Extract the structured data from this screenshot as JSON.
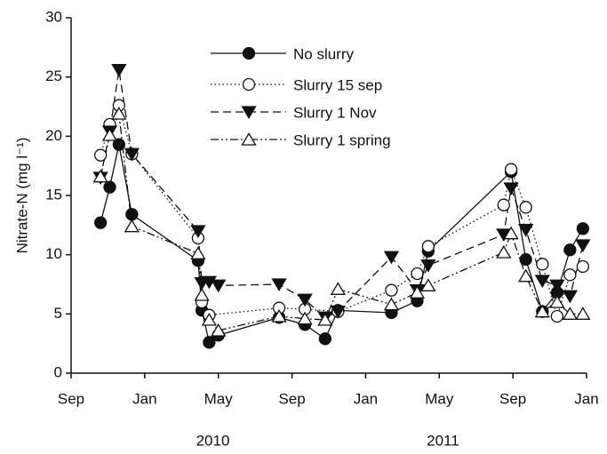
{
  "chart_data": {
    "type": "line",
    "ylabel": "Nitrate-N (mg l⁻¹)",
    "ylim": [
      0,
      30
    ],
    "yticks": [
      0,
      5,
      10,
      15,
      20,
      25,
      30
    ],
    "xlim": [
      0,
      28
    ],
    "xticks": [
      {
        "value": 0,
        "label": "Sep"
      },
      {
        "value": 4,
        "label": "Jan"
      },
      {
        "value": 8,
        "label": "May"
      },
      {
        "value": 12,
        "label": "Sep"
      },
      {
        "value": 16,
        "label": "Jan"
      },
      {
        "value": 20,
        "label": "May"
      },
      {
        "value": 24,
        "label": "Sep"
      },
      {
        "value": 28,
        "label": "Jan"
      }
    ],
    "year_labels": [
      {
        "value": 7.7,
        "label": "2010"
      },
      {
        "value": 20.2,
        "label": "2011"
      }
    ],
    "legend": "upper center",
    "series": [
      {
        "name": "No slurry",
        "color": "#111111",
        "marker": "filled-circle",
        "dash": "solid",
        "x": [
          1.6,
          2.1,
          2.6,
          3.3,
          6.9,
          7.1,
          7.5,
          8.0,
          11.3,
          12.7,
          13.8,
          14.5,
          17.4,
          18.8,
          19.4,
          23.9,
          24.7,
          25.6,
          26.4,
          27.1,
          27.8
        ],
        "values": [
          12.7,
          15.7,
          19.3,
          13.4,
          9.5,
          5.3,
          2.6,
          3.2,
          4.7,
          4.1,
          2.9,
          5.3,
          5.1,
          6.1,
          10.3,
          17.0,
          9.6,
          5.2,
          6.8,
          10.4,
          12.2
        ]
      },
      {
        "name": "Slurry 15 sep",
        "color": "#111111",
        "marker": "open-circle",
        "dash": "dotted",
        "x": [
          1.6,
          2.1,
          2.6,
          3.3,
          6.9,
          7.1,
          7.5,
          11.3,
          12.7,
          14.5,
          17.4,
          18.8,
          19.4,
          23.5,
          23.9,
          24.7,
          25.6,
          26.4,
          27.1,
          27.8
        ],
        "values": [
          18.4,
          21.0,
          22.6,
          18.5,
          11.4,
          6.0,
          4.9,
          5.5,
          5.4,
          5.2,
          7.0,
          8.4,
          10.7,
          14.2,
          17.2,
          14.0,
          9.2,
          4.8,
          8.3,
          9.0
        ]
      },
      {
        "name": "Slurry 1 Nov",
        "color": "#111111",
        "marker": "filled-triangle-down",
        "dash": "dashed",
        "x": [
          1.6,
          2.1,
          2.6,
          3.3,
          6.9,
          7.1,
          7.5,
          8.0,
          11.3,
          12.7,
          13.8,
          14.5,
          17.4,
          18.8,
          19.4,
          23.5,
          23.9,
          24.7,
          25.6,
          26.4,
          27.1,
          27.8
        ],
        "values": [
          16.5,
          20.4,
          25.6,
          18.5,
          12.0,
          7.6,
          7.7,
          7.4,
          7.5,
          6.2,
          4.7,
          5.2,
          9.8,
          7.0,
          9.1,
          11.7,
          15.6,
          12.1,
          7.8,
          7.4,
          6.5,
          10.8
        ]
      },
      {
        "name": "Slurry 1 spring",
        "color": "#111111",
        "marker": "open-triangle-up",
        "dash": "dash-dot-dot",
        "x": [
          1.6,
          2.1,
          2.6,
          3.3,
          6.9,
          7.1,
          7.5,
          8.0,
          11.3,
          12.7,
          13.8,
          14.5,
          17.4,
          18.8,
          19.4,
          23.5,
          23.9,
          24.7,
          25.6,
          26.4,
          27.1,
          27.8
        ],
        "values": [
          16.6,
          20.1,
          21.9,
          12.4,
          10.1,
          6.6,
          4.5,
          3.6,
          4.8,
          4.6,
          4.5,
          7.1,
          5.8,
          6.8,
          7.4,
          10.2,
          11.8,
          8.2,
          5.2,
          6.0,
          5.0,
          5.0
        ]
      }
    ]
  }
}
